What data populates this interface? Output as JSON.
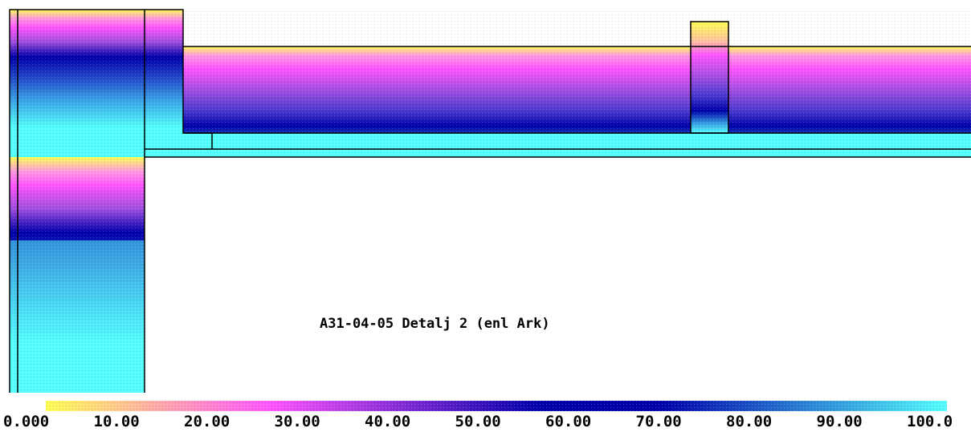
{
  "title": "A31-04-05 Detalj 2 (enl Ark)",
  "scale": {
    "ticks": [
      "0.000",
      "10.00",
      "20.00",
      "30.00",
      "40.00",
      "50.00",
      "60.00",
      "70.00",
      "80.00",
      "90.00",
      "100.0"
    ],
    "colors": [
      "#ffff55",
      "#ff55ff",
      "#0000aa",
      "#55ffff"
    ]
  }
}
